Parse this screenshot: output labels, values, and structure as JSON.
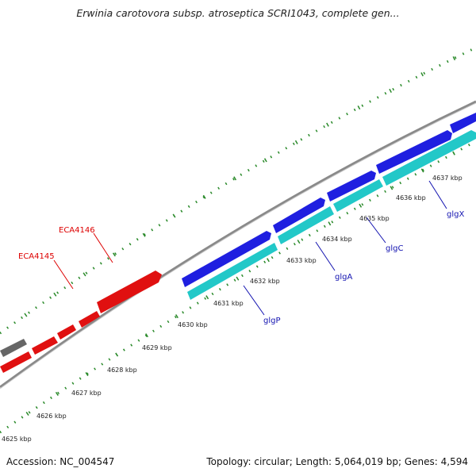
{
  "title": "Erwinia carotovora subsp. atroseptica SCRI1043, complete gen...",
  "footer": {
    "accession": "Accession: NC_004547",
    "summary": "Topology: circular; Length: 5,064,019 bp; Genes: 4,594"
  },
  "colors": {
    "forward_gene": "#1f1fe0",
    "reverse_gene": "#22c8c8",
    "other_gene": "#e01010",
    "pseudo_gene": "#666666",
    "backbone": "#8a8a8a",
    "ticks": "#2a8a2a",
    "forward_label": "#1212b0",
    "other_label": "#dd0000"
  },
  "scale_ticks": [
    {
      "label": "4625 kbp",
      "x": 4625
    },
    {
      "label": "4626 kbp",
      "x": 4626
    },
    {
      "label": "4627 kbp",
      "x": 4627
    },
    {
      "label": "4628 kbp",
      "x": 4628
    },
    {
      "label": "4629 kbp",
      "x": 4629
    },
    {
      "label": "4630 kbp",
      "x": 4630
    },
    {
      "label": "4631 kbp",
      "x": 4631
    },
    {
      "label": "4632 kbp",
      "x": 4632
    },
    {
      "label": "4633 kbp",
      "x": 4633
    },
    {
      "label": "4634 kbp",
      "x": 4634
    },
    {
      "label": "4635 kbp",
      "x": 4635
    },
    {
      "label": "4636 kbp",
      "x": 4636
    },
    {
      "label": "4637 kbp",
      "x": 4637
    }
  ],
  "gene_labels": [
    {
      "name": "ECA4146",
      "color_key": "other_label"
    },
    {
      "name": "ECA4145",
      "color_key": "other_label"
    },
    {
      "name": "glgP",
      "color_key": "forward_label"
    },
    {
      "name": "glgA",
      "color_key": "forward_label"
    },
    {
      "name": "glgC",
      "color_key": "forward_label"
    },
    {
      "name": "glgX",
      "color_key": "forward_label"
    }
  ]
}
